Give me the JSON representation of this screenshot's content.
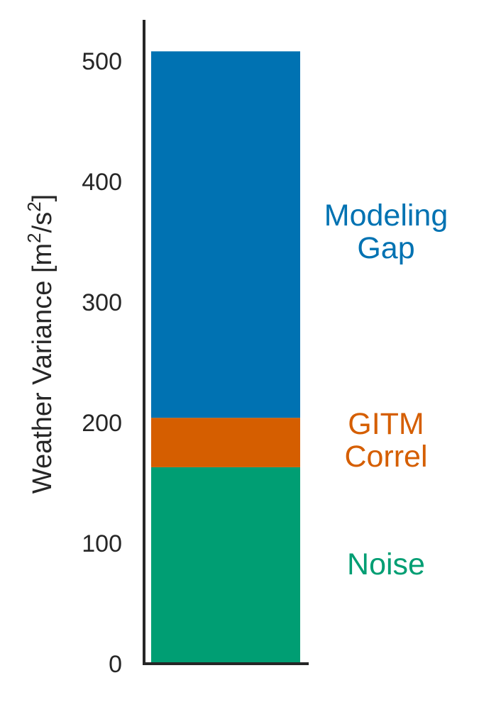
{
  "chart_data": {
    "type": "bar",
    "stacked": true,
    "ylabel": "Weather Variance [m²/s²]",
    "ylabel_parts": {
      "main": "Weather Variance [m",
      "sup1": "2",
      "mid": "/s",
      "sup2": "2",
      "end": "]"
    },
    "ylim": [
      0,
      535
    ],
    "yticks": [
      0,
      100,
      200,
      300,
      400,
      500
    ],
    "grid": false,
    "segments": [
      {
        "name": "Noise",
        "label_lines": [
          "Noise"
        ],
        "value": 163,
        "color": "#009e73"
      },
      {
        "name": "GITM Correl",
        "label_lines": [
          "GITM",
          "Correl"
        ],
        "value": 41,
        "color": "#d55e00"
      },
      {
        "name": "Modeling Gap",
        "label_lines": [
          "Modeling",
          "Gap"
        ],
        "value": 304,
        "color": "#0072b2"
      }
    ],
    "axis_color": "#262626"
  }
}
